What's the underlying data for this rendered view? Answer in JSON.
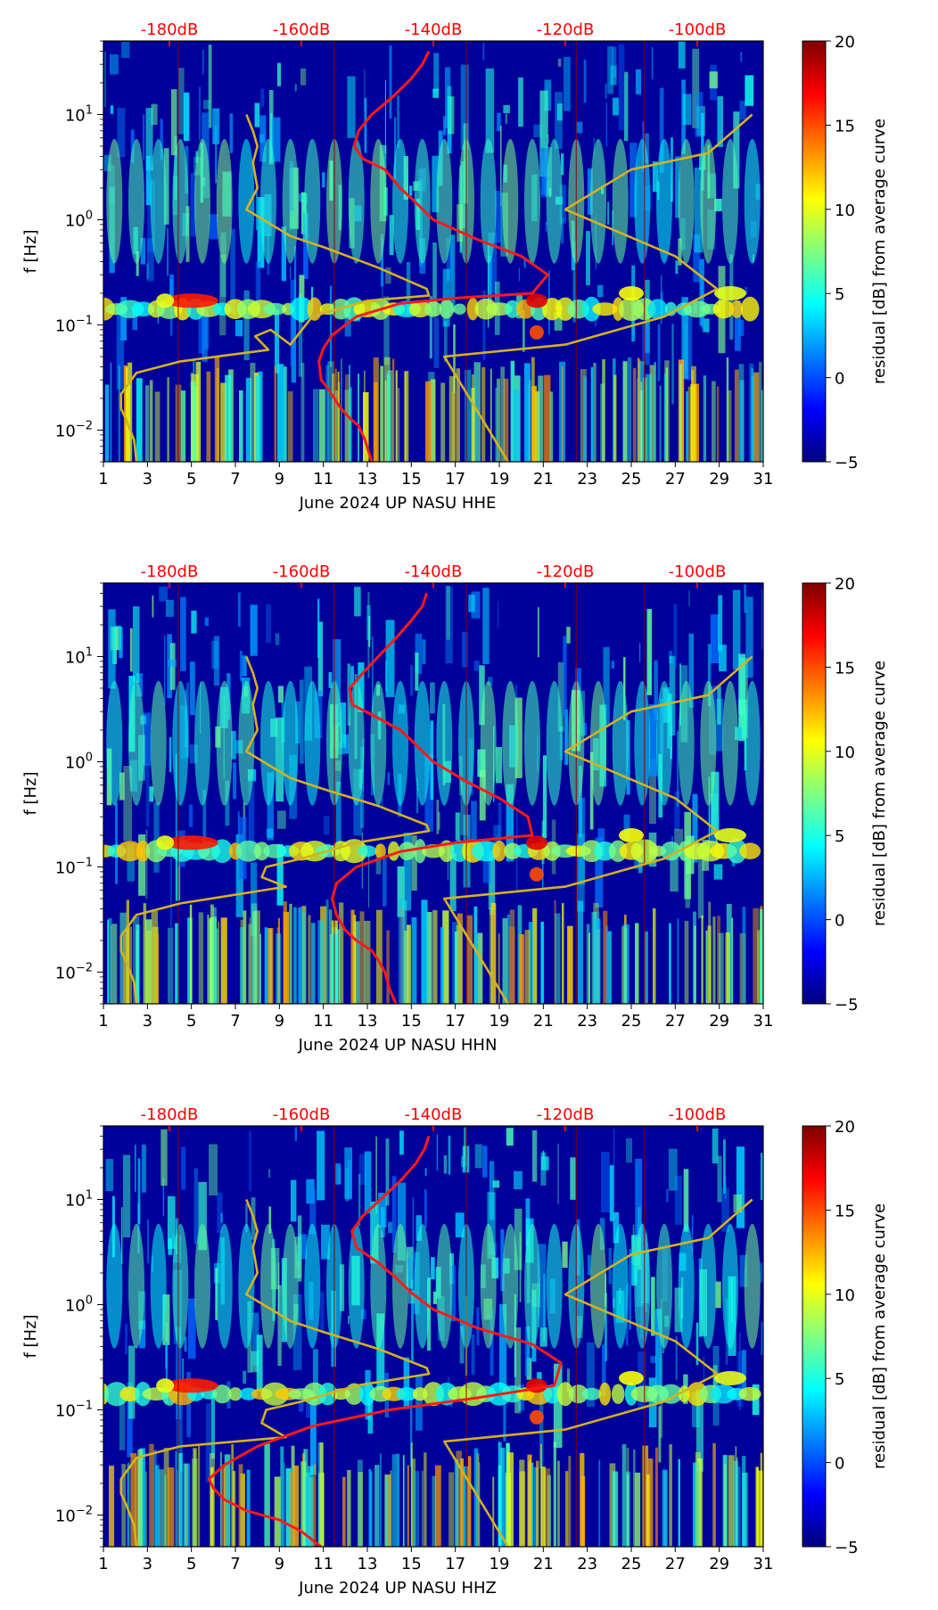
{
  "colorbar": {
    "label": "residual [dB] from average curve",
    "ticks": [
      "20",
      "15",
      "10",
      "5",
      "0",
      "−5"
    ],
    "values": [
      20,
      15,
      10,
      5,
      0,
      -5
    ],
    "colors": [
      "#00007f",
      "#0000ff",
      "#007fff",
      "#00ffff",
      "#7fff7f",
      "#ffff00",
      "#ff7f00",
      "#ff0000",
      "#7f0000"
    ]
  },
  "top_axis": {
    "labels": [
      "-180dB",
      "-160dB",
      "-140dB",
      "-120dB",
      "-100dB"
    ],
    "color": "#ff0000"
  },
  "x_axis": {
    "ticks": [
      "1",
      "3",
      "5",
      "7",
      "9",
      "11",
      "13",
      "15",
      "17",
      "19",
      "21",
      "23",
      "25",
      "27",
      "29",
      "31"
    ]
  },
  "y_axis": {
    "label": "f [Hz]",
    "ticks": [
      {
        "base": "10",
        "exp": "1"
      },
      {
        "base": "10",
        "exp": "0"
      },
      {
        "base": "10",
        "exp": "−1"
      },
      {
        "base": "10",
        "exp": "−2"
      }
    ]
  },
  "chart_data": [
    {
      "type": "heatmap",
      "xlabel": "June 2024 UP NASU  HHE",
      "ylabel": "f [Hz]",
      "xlim": [
        1,
        31
      ],
      "ylim": [
        0.005,
        50
      ],
      "yscale": "log",
      "colorbar_range": [
        -5,
        20
      ],
      "colorbar_label": "residual [dB] from average curve",
      "top_axis_labels": [
        "-180dB",
        "-160dB",
        "-140dB",
        "-120dB",
        "-100dB"
      ],
      "series": [
        {
          "color": "#d4b21f",
          "x": [
            2.5,
            2.4,
            2.0,
            1.8,
            1.8,
            2.5,
            4.5,
            8.5,
            7.9,
            8.6,
            9.5,
            10.5,
            13.0,
            15.8,
            15.7,
            13.5,
            11.0,
            9.5,
            7.5,
            8.0,
            7.8,
            8.0,
            7.8,
            7.5
          ],
          "y": [
            0.005,
            0.008,
            0.013,
            0.016,
            0.022,
            0.035,
            0.045,
            0.058,
            0.078,
            0.09,
            0.065,
            0.12,
            0.17,
            0.19,
            0.22,
            0.35,
            0.55,
            0.7,
            1.25,
            2.0,
            3.5,
            5.0,
            7.0,
            10.0
          ]
        },
        {
          "color": "#d4b21f",
          "x": [
            19.4,
            16.5,
            22.0,
            26.5,
            28.9,
            27.0,
            24.5,
            22.0,
            25.0,
            28.5,
            30.5
          ],
          "y": [
            0.005,
            0.05,
            0.065,
            0.12,
            0.22,
            0.45,
            0.75,
            1.25,
            3.0,
            4.3,
            10.0
          ]
        },
        {
          "color": "#ff1a1a",
          "x": [
            13.2,
            12.9,
            12.6,
            12.2,
            11.8,
            11.5,
            11.2,
            10.9,
            10.8,
            11.0,
            11.4,
            12.5,
            14.5,
            17.0,
            20.5,
            21.2,
            20.0,
            18.0,
            16.0,
            15.0,
            14.5,
            13.8,
            12.8,
            12.4,
            12.6,
            13.2,
            14.2,
            15.0,
            15.5,
            15.8
          ],
          "y": [
            0.005,
            0.008,
            0.011,
            0.013,
            0.016,
            0.02,
            0.025,
            0.03,
            0.045,
            0.06,
            0.08,
            0.12,
            0.16,
            0.18,
            0.2,
            0.3,
            0.45,
            0.65,
            1.0,
            1.6,
            2.0,
            3.0,
            3.8,
            5.0,
            7.0,
            10.0,
            15.0,
            22.0,
            30.0,
            40.0
          ]
        }
      ]
    },
    {
      "type": "heatmap",
      "xlabel": "June 2024 UP NASU  HHN",
      "ylabel": "f [Hz]",
      "xlim": [
        1,
        31
      ],
      "ylim": [
        0.005,
        50
      ],
      "yscale": "log",
      "colorbar_range": [
        -5,
        20
      ],
      "colorbar_label": "residual [dB] from average curve",
      "top_axis_labels": [
        "-180dB",
        "-160dB",
        "-140dB",
        "-120dB",
        "-100dB"
      ],
      "series": [
        {
          "color": "#d4b21f",
          "x": [
            2.5,
            2.4,
            2.0,
            1.8,
            1.8,
            2.5,
            4.5,
            9.3,
            8.2,
            8.4,
            10.0,
            12.5,
            15.8,
            15.7,
            13.5,
            11.0,
            9.5,
            7.5,
            8.0,
            7.8,
            8.0,
            7.8,
            7.5
          ],
          "y": [
            0.005,
            0.008,
            0.013,
            0.016,
            0.022,
            0.035,
            0.045,
            0.065,
            0.08,
            0.1,
            0.12,
            0.17,
            0.22,
            0.25,
            0.38,
            0.55,
            0.7,
            1.25,
            2.0,
            3.5,
            5.0,
            7.0,
            10.0
          ]
        },
        {
          "color": "#d4b21f",
          "x": [
            19.4,
            16.5,
            22.0,
            26.5,
            28.9,
            27.0,
            24.5,
            22.0,
            25.0,
            28.5,
            30.5
          ],
          "y": [
            0.005,
            0.05,
            0.065,
            0.12,
            0.22,
            0.45,
            0.75,
            1.25,
            3.0,
            4.3,
            10.0
          ]
        },
        {
          "color": "#ff1a1a",
          "x": [
            14.3,
            14.0,
            13.8,
            13.5,
            13.2,
            12.5,
            12.0,
            11.6,
            11.4,
            11.6,
            12.5,
            14.5,
            17.0,
            20.5,
            20.3,
            19.0,
            17.5,
            16.0,
            15.0,
            14.5,
            13.5,
            12.3,
            12.2,
            12.8,
            13.5,
            14.3,
            15.0,
            15.5,
            15.7
          ],
          "y": [
            0.005,
            0.007,
            0.01,
            0.013,
            0.016,
            0.02,
            0.025,
            0.035,
            0.05,
            0.07,
            0.1,
            0.14,
            0.17,
            0.2,
            0.3,
            0.45,
            0.65,
            1.0,
            1.6,
            2.0,
            2.6,
            3.5,
            5.0,
            7.0,
            10.0,
            15.0,
            22.0,
            30.0,
            40.0
          ]
        }
      ]
    },
    {
      "type": "heatmap",
      "xlabel": "June 2024 UP NASU  HHZ",
      "ylabel": "f [Hz]",
      "xlim": [
        1,
        31
      ],
      "ylim": [
        0.005,
        50
      ],
      "yscale": "log",
      "colorbar_range": [
        -5,
        20
      ],
      "colorbar_label": "residual [dB] from average curve",
      "top_axis_labels": [
        "-180dB",
        "-160dB",
        "-140dB",
        "-120dB",
        "-100dB"
      ],
      "series": [
        {
          "color": "#d4b21f",
          "x": [
            2.5,
            2.4,
            2.0,
            1.8,
            1.8,
            2.5,
            4.5,
            9.3,
            8.2,
            8.4,
            10.0,
            12.5,
            15.8,
            15.7,
            13.5,
            11.0,
            9.5,
            7.5,
            8.0,
            7.8,
            8.0,
            7.8,
            7.5
          ],
          "y": [
            0.005,
            0.008,
            0.013,
            0.016,
            0.022,
            0.035,
            0.045,
            0.055,
            0.075,
            0.1,
            0.12,
            0.17,
            0.22,
            0.25,
            0.38,
            0.55,
            0.7,
            1.25,
            2.0,
            3.5,
            5.0,
            7.0,
            10.0
          ]
        },
        {
          "color": "#d4b21f",
          "x": [
            19.4,
            16.5,
            22.0,
            26.5,
            28.9,
            27.0,
            24.5,
            22.0,
            25.0,
            28.5,
            30.5
          ],
          "y": [
            0.005,
            0.05,
            0.065,
            0.12,
            0.22,
            0.45,
            0.75,
            1.25,
            3.0,
            4.3,
            10.0
          ]
        },
        {
          "color": "#ff1a1a",
          "x": [
            10.9,
            10.0,
            9.0,
            7.5,
            6.5,
            6.0,
            5.8,
            6.5,
            8.0,
            10.5,
            14.0,
            18.0,
            21.5,
            21.8,
            20.5,
            18.0,
            16.0,
            15.0,
            14.3,
            13.5,
            12.5,
            12.3,
            12.8,
            13.6,
            14.5,
            15.2,
            15.6,
            15.8
          ],
          "y": [
            0.005,
            0.007,
            0.009,
            0.011,
            0.014,
            0.018,
            0.022,
            0.03,
            0.045,
            0.07,
            0.1,
            0.13,
            0.17,
            0.28,
            0.42,
            0.6,
            0.9,
            1.3,
            1.8,
            2.5,
            3.5,
            5.0,
            7.0,
            10.0,
            15.0,
            22.0,
            30.0,
            40.0
          ]
        }
      ]
    }
  ]
}
